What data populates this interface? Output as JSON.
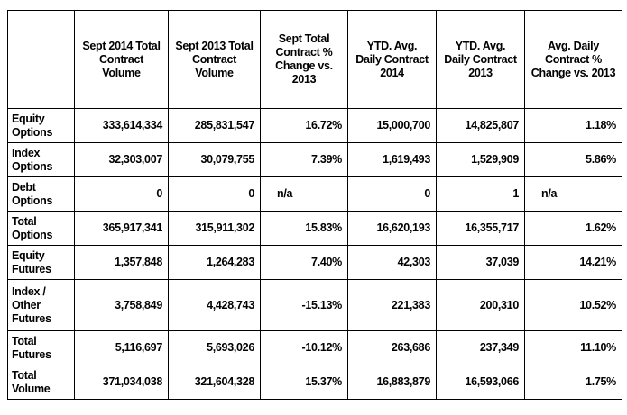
{
  "headers": [
    "",
    "Sept 2014 Total Contract Volume",
    "Sept 2013 Total Contract Volume",
    "Sept Total Contract % Change vs. 2013",
    "YTD. Avg. Daily Contract 2014",
    "YTD. Avg. Daily Contract 2013",
    "Avg. Daily Contract % Change vs. 2013"
  ],
  "rows": [
    [
      "Equity Options",
      "333,614,334",
      "285,831,547",
      "16.72%",
      "15,000,700",
      "14,825,807",
      "1.18%"
    ],
    [
      "Index Options",
      "32,303,007",
      "30,079,755",
      "7.39%",
      "1,619,493",
      "1,529,909",
      "5.86%"
    ],
    [
      "Debt Options",
      "0",
      "0",
      "n/a",
      "0",
      "1",
      "n/a"
    ],
    [
      "Total Options",
      "365,917,341",
      "315,911,302",
      "15.83%",
      "16,620,193",
      "16,355,717",
      "1.62%"
    ],
    [
      "Equity Futures",
      "1,357,848",
      "1,264,283",
      "7.40%",
      "42,303",
      "37,039",
      "14.21%"
    ],
    [
      "Index / Other Futures",
      "3,758,849",
      "4,428,743",
      "-15.13%",
      "221,383",
      "200,310",
      "10.52%"
    ],
    [
      "Total Futures",
      "5,116,697",
      "5,693,026",
      "-10.12%",
      "263,686",
      "237,349",
      "11.10%"
    ],
    [
      "Total Volume",
      "371,034,038",
      "321,604,328",
      "15.37%",
      "16,883,879",
      "16,593,066",
      "1.75%"
    ]
  ]
}
